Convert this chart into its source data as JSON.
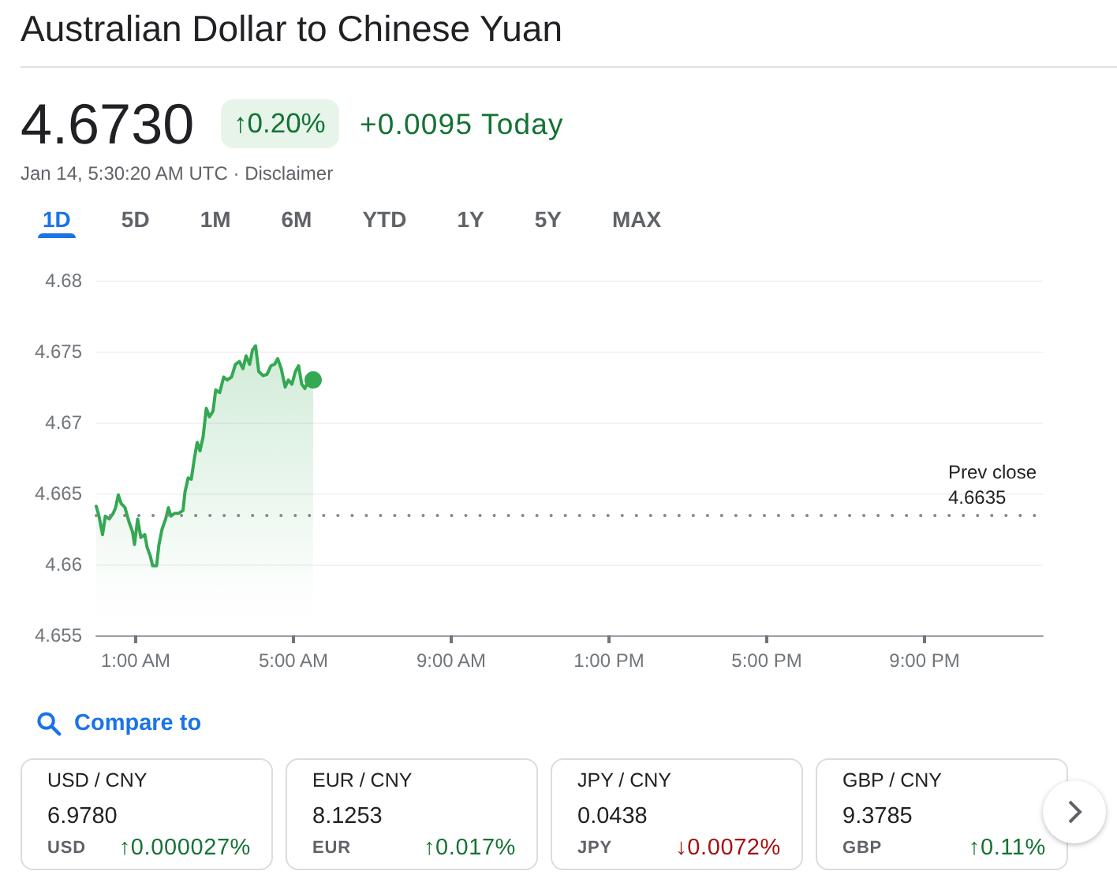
{
  "chart_data": [
    {
      "type": "area",
      "title": "Australian Dollar to Chinese Yuan",
      "annotations": [
        "4.6730",
        "↑0.20%",
        "+0.0095 Today",
        "Jan 14, 5:30:20 AM UTC · Disclaimer",
        "1D",
        "5D",
        "1M",
        "6M",
        "YTD",
        "1Y",
        "5Y",
        "MAX"
      ],
      "series": [
        {
          "type": "area",
          "color": "#34a853",
          "marker": "none",
          "x": [
            0,
            0.07,
            0.16,
            0.23,
            0.33,
            0.43,
            0.49,
            0.56,
            0.63,
            0.73,
            0.83,
            0.92,
            0.97,
            1.05,
            1.13,
            1.23,
            1.29,
            1.37,
            1.43,
            1.53,
            1.59,
            1.67,
            1.76,
            1.83,
            1.89,
            1.99,
            2.09,
            2.2,
            2.25,
            2.33,
            2.41,
            2.49,
            2.56,
            2.63,
            2.71,
            2.79,
            2.87,
            2.96,
            3.03,
            3.13,
            3.23,
            3.32,
            3.43,
            3.53,
            3.63,
            3.72,
            3.8,
            3.89,
            3.96,
            4.04,
            4.12,
            4.23,
            4.33,
            4.43,
            4.52,
            4.6,
            4.69,
            4.79,
            4.87,
            4.96,
            5.05,
            5.13,
            5.21,
            5.29,
            5.37,
            5.45,
            5.5
          ],
          "values": [
            4.6641,
            4.6634,
            4.6621,
            4.6634,
            4.6632,
            4.6636,
            4.664,
            4.6649,
            4.6643,
            4.664,
            4.663,
            4.6623,
            4.6614,
            4.6632,
            4.6619,
            4.6621,
            4.6612,
            4.6606,
            4.6599,
            4.6599,
            4.6614,
            4.6625,
            4.6632,
            4.664,
            4.6634,
            4.6636,
            4.6636,
            4.6638,
            4.6651,
            4.6661,
            4.666,
            4.6675,
            4.6686,
            4.668,
            4.669,
            4.671,
            4.6704,
            4.6708,
            4.6723,
            4.6721,
            4.6732,
            4.673,
            4.6732,
            4.6741,
            4.6743,
            4.6738,
            4.6747,
            4.6741,
            4.6751,
            4.6754,
            4.6736,
            4.6733,
            4.6734,
            4.674,
            4.6741,
            4.6745,
            4.6738,
            4.6725,
            4.673,
            4.6727,
            4.6736,
            4.674,
            4.6727,
            4.6724,
            4.6729,
            4.6726,
            4.673
          ]
        },
        {
          "type": "scatter",
          "color": "#34a853",
          "marker": "circle",
          "x": [
            5.5
          ],
          "values": [
            4.673
          ]
        }
      ],
      "xlim": [
        0,
        24
      ],
      "xticks": [
        {
          "value": 1,
          "label": "1:00 AM"
        },
        {
          "value": 5,
          "label": "5:00 AM"
        },
        {
          "value": 9,
          "label": "9:00 AM"
        },
        {
          "value": 13,
          "label": "1:00 PM"
        },
        {
          "value": 17,
          "label": "5:00 PM"
        },
        {
          "value": 21,
          "label": "9:00 PM"
        }
      ],
      "ylim": [
        4.655,
        4.68
      ],
      "yticks": [
        4.655,
        4.66,
        4.665,
        4.67,
        4.675,
        4.68
      ],
      "ref_lines": [
        {
          "axis": "y",
          "value": 4.6635,
          "label": "Prev close 4.6635",
          "color": "#80868b",
          "line_style": "dotted"
        }
      ],
      "grid": "y"
    },
    {
      "type": "other",
      "title": "Compare to",
      "annotations": [
        "USD / CNY",
        "6.9780",
        "USD",
        "↑0.000027%",
        "EUR / CNY",
        "8.1253",
        "EUR",
        "↑0.017%",
        "JPY / CNY",
        "0.0438",
        "JPY",
        "↓0.0072%",
        "GBP / CNY",
        "9.3785",
        "GBP",
        "↑0.11%"
      ],
      "colors": [
        "#137333",
        "#137333",
        "#a50e0e",
        "#137333"
      ]
    }
  ]
}
